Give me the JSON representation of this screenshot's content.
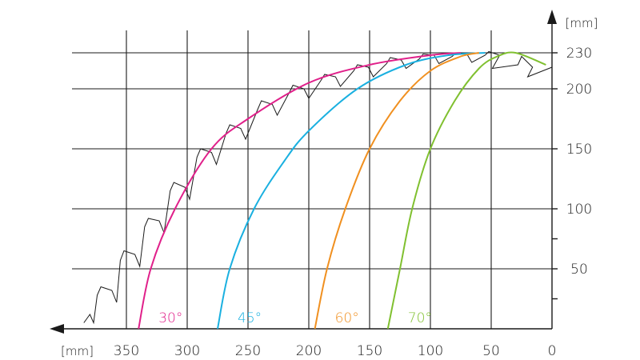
{
  "chart_data": {
    "type": "line",
    "x_unit": "[mm]",
    "y_unit": "[mm]",
    "xlim": [
      0,
      380
    ],
    "ylim": [
      0,
      240
    ],
    "x_axis_reversed": true,
    "x_ticks": [
      350,
      300,
      250,
      200,
      150,
      100,
      50,
      0
    ],
    "y_tick_labels": [
      50,
      100,
      150,
      200,
      230
    ],
    "y_minor_ticks": [
      25,
      75
    ],
    "grid": true,
    "series": [
      {
        "name": "30°",
        "color": "#e0208a",
        "points": [
          [
            340,
            0
          ],
          [
            330,
            50
          ],
          [
            310,
            100
          ],
          [
            280,
            150
          ],
          [
            250,
            175
          ],
          [
            200,
            205
          ],
          [
            150,
            220
          ],
          [
            100,
            228
          ],
          [
            75,
            230
          ]
        ]
      },
      {
        "name": "45°",
        "color": "#1ab0e0",
        "points": [
          [
            275,
            0
          ],
          [
            265,
            50
          ],
          [
            245,
            100
          ],
          [
            220,
            140
          ],
          [
            200,
            165
          ],
          [
            160,
            200
          ],
          [
            120,
            220
          ],
          [
            85,
            228
          ],
          [
            55,
            230
          ]
        ]
      },
      {
        "name": "60°",
        "color": "#f09020",
        "points": [
          [
            195,
            0
          ],
          [
            185,
            50
          ],
          [
            170,
            100
          ],
          [
            150,
            150
          ],
          [
            125,
            190
          ],
          [
            100,
            215
          ],
          [
            75,
            227
          ],
          [
            60,
            230
          ]
        ]
      },
      {
        "name": "70°",
        "color": "#80c030",
        "points": [
          [
            135,
            0
          ],
          [
            125,
            50
          ],
          [
            115,
            100
          ],
          [
            100,
            150
          ],
          [
            80,
            190
          ],
          [
            60,
            217
          ],
          [
            45,
            227
          ],
          [
            30,
            230
          ],
          [
            5,
            220
          ]
        ]
      }
    ],
    "saw_blade_profile": {
      "color": "#1a1a1a",
      "points": [
        [
          385,
          5
        ],
        [
          380,
          12
        ],
        [
          377,
          5
        ],
        [
          374,
          28
        ],
        [
          371,
          35
        ],
        [
          362,
          32
        ],
        [
          358,
          22
        ],
        [
          355,
          57
        ],
        [
          352,
          65
        ],
        [
          343,
          62
        ],
        [
          339,
          52
        ],
        [
          335,
          85
        ],
        [
          332,
          92
        ],
        [
          323,
          90
        ],
        [
          319,
          80
        ],
        [
          314,
          115
        ],
        [
          311,
          122
        ],
        [
          302,
          118
        ],
        [
          298,
          108
        ],
        [
          292,
          143
        ],
        [
          289,
          150
        ],
        [
          280,
          147
        ],
        [
          276,
          137
        ],
        [
          268,
          163
        ],
        [
          265,
          170
        ],
        [
          256,
          167
        ],
        [
          252,
          158
        ],
        [
          242,
          183
        ],
        [
          239,
          190
        ],
        [
          230,
          187
        ],
        [
          226,
          178
        ],
        [
          216,
          197
        ],
        [
          213,
          203
        ],
        [
          204,
          200
        ],
        [
          200,
          192
        ],
        [
          190,
          207
        ],
        [
          187,
          212
        ],
        [
          178,
          210
        ],
        [
          174,
          202
        ],
        [
          163,
          215
        ],
        [
          160,
          220
        ],
        [
          151,
          218
        ],
        [
          147,
          210
        ],
        [
          136,
          221
        ],
        [
          133,
          226
        ],
        [
          124,
          224
        ],
        [
          120,
          217
        ],
        [
          109,
          225
        ],
        [
          106,
          229
        ],
        [
          97,
          228
        ],
        [
          93,
          221
        ],
        [
          82,
          227
        ],
        [
          79,
          230
        ],
        [
          70,
          229
        ],
        [
          66,
          222
        ],
        [
          55,
          228
        ],
        [
          52,
          231
        ],
        [
          43,
          228
        ],
        [
          49,
          217
        ],
        [
          28,
          220
        ],
        [
          25,
          227
        ],
        [
          16,
          218
        ],
        [
          20,
          210
        ],
        [
          0,
          218
        ]
      ]
    }
  }
}
